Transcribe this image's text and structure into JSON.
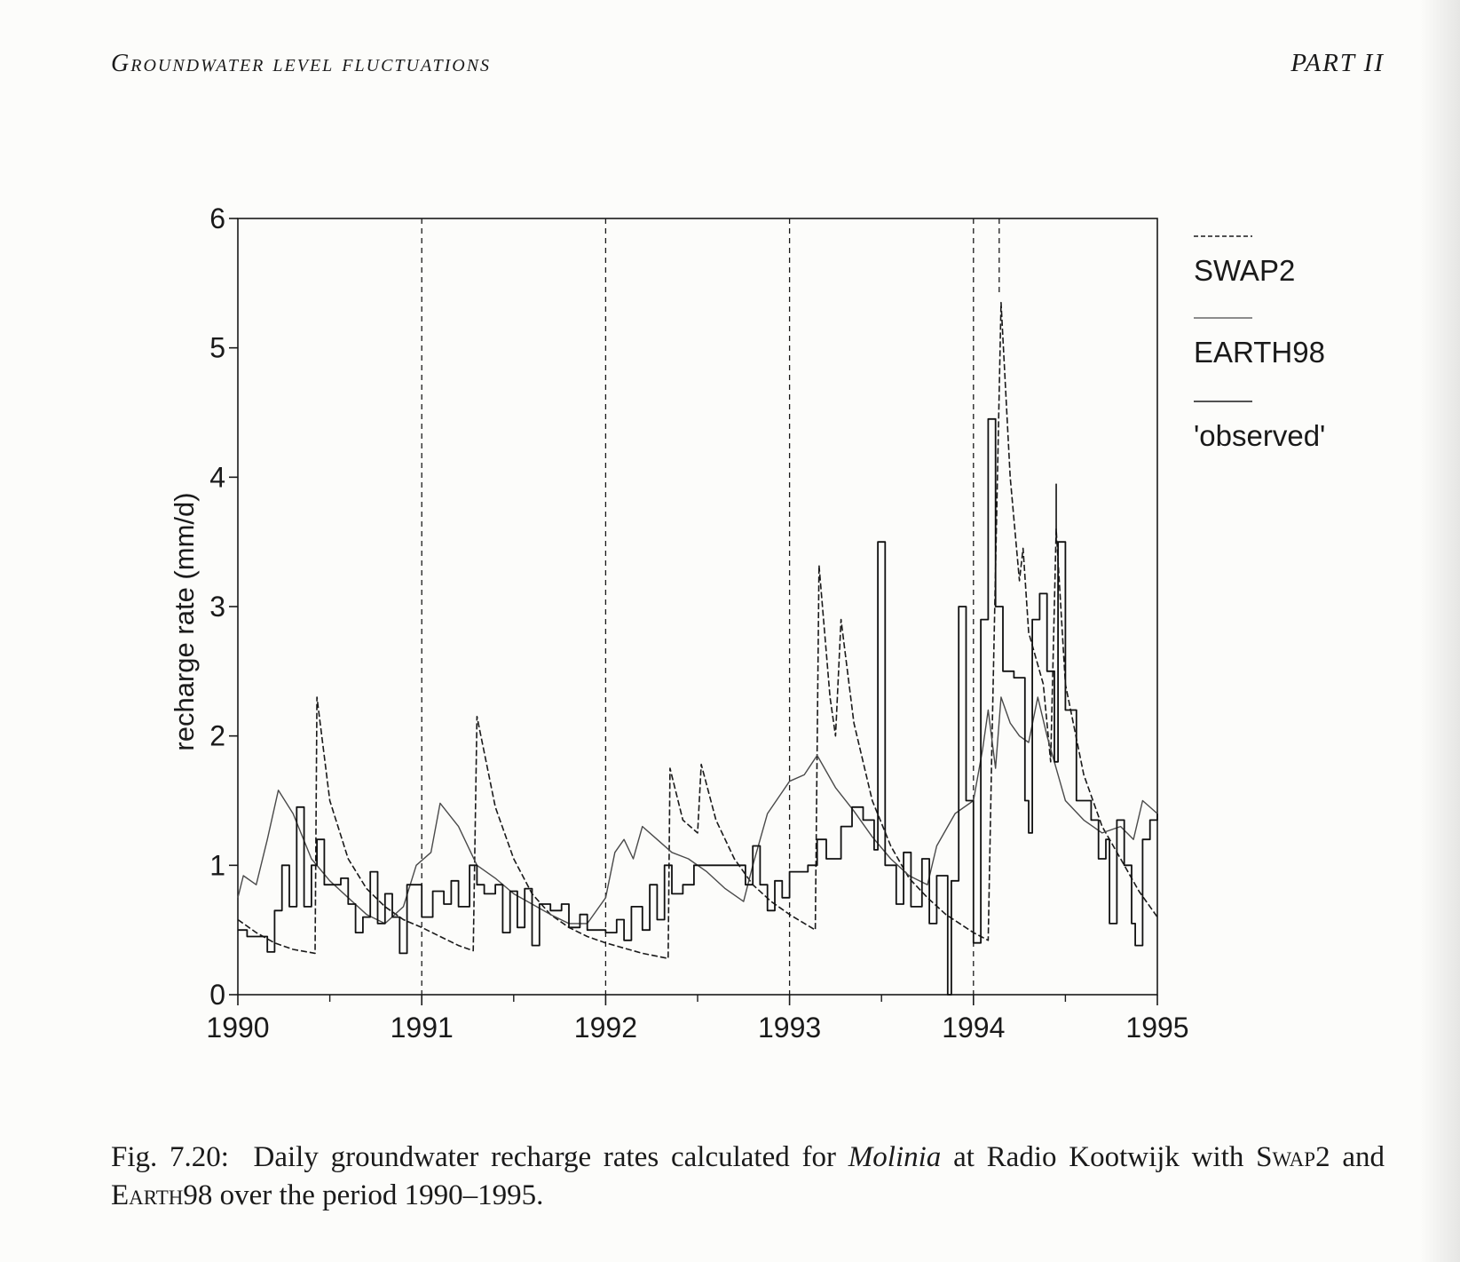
{
  "header": {
    "left": "Groundwater level fluctuations",
    "right": "PART II"
  },
  "caption": {
    "label": "Fig. 7.20:",
    "text_1": "Daily groundwater recharge rates calculated for",
    "species": "Molinia",
    "text_2": "at Radio Kootwijk with",
    "model_1": "Swap2",
    "text_3": "and",
    "model_2": "Earth98",
    "text_4": "over the period 1990–1995."
  },
  "chart_data": {
    "type": "line",
    "title": "",
    "xlabel": "",
    "ylabel": "recharge rate (mm/d)",
    "xlim": [
      1990,
      1995
    ],
    "ylim": [
      0,
      6
    ],
    "x_ticks": [
      "1990",
      "1991",
      "1992",
      "1993",
      "1994",
      "1995"
    ],
    "y_ticks": [
      "0",
      "1",
      "2",
      "3",
      "4",
      "5",
      "6"
    ],
    "grid": false,
    "legend_position": "right",
    "legend": [
      "SWAP2",
      "EARTH98",
      "'observed'"
    ],
    "series": [
      {
        "name": "SWAP2",
        "style": "dashed",
        "points": [
          [
            1990.0,
            0.58
          ],
          [
            1990.1,
            0.48
          ],
          [
            1990.2,
            0.4
          ],
          [
            1990.3,
            0.35
          ],
          [
            1990.42,
            0.32
          ],
          [
            1990.43,
            2.3
          ],
          [
            1990.5,
            1.5
          ],
          [
            1990.6,
            1.05
          ],
          [
            1990.7,
            0.82
          ],
          [
            1990.8,
            0.68
          ],
          [
            1990.9,
            0.58
          ],
          [
            1991.0,
            0.52
          ],
          [
            1991.1,
            0.45
          ],
          [
            1991.2,
            0.38
          ],
          [
            1991.28,
            0.34
          ],
          [
            1991.3,
            2.15
          ],
          [
            1991.4,
            1.45
          ],
          [
            1991.5,
            1.05
          ],
          [
            1991.6,
            0.78
          ],
          [
            1991.7,
            0.62
          ],
          [
            1991.8,
            0.52
          ],
          [
            1991.9,
            0.45
          ],
          [
            1992.0,
            0.4
          ],
          [
            1992.1,
            0.36
          ],
          [
            1992.2,
            0.32
          ],
          [
            1992.34,
            0.28
          ],
          [
            1992.35,
            1.75
          ],
          [
            1992.42,
            1.35
          ],
          [
            1992.5,
            1.25
          ],
          [
            1992.52,
            1.78
          ],
          [
            1992.6,
            1.35
          ],
          [
            1992.7,
            1.05
          ],
          [
            1992.8,
            0.85
          ],
          [
            1992.9,
            0.72
          ],
          [
            1993.0,
            0.62
          ],
          [
            1993.14,
            0.5
          ],
          [
            1993.16,
            3.32
          ],
          [
            1993.22,
            2.3
          ],
          [
            1993.25,
            2.0
          ],
          [
            1993.28,
            2.9
          ],
          [
            1993.35,
            2.1
          ],
          [
            1993.45,
            1.5
          ],
          [
            1993.55,
            1.15
          ],
          [
            1993.65,
            0.9
          ],
          [
            1993.75,
            0.75
          ],
          [
            1993.85,
            0.62
          ],
          [
            1994.0,
            0.48
          ],
          [
            1994.08,
            0.42
          ],
          [
            1994.1,
            1.9
          ],
          [
            1994.15,
            5.35
          ],
          [
            1994.2,
            4.0
          ],
          [
            1994.25,
            3.2
          ],
          [
            1994.27,
            3.45
          ],
          [
            1994.3,
            2.8
          ],
          [
            1994.38,
            2.4
          ],
          [
            1994.42,
            1.8
          ],
          [
            1994.45,
            3.6
          ],
          [
            1994.5,
            2.4
          ],
          [
            1994.6,
            1.7
          ],
          [
            1994.7,
            1.3
          ],
          [
            1994.8,
            1.05
          ],
          [
            1994.9,
            0.8
          ],
          [
            1995.0,
            0.6
          ]
        ]
      },
      {
        "name": "EARTH98",
        "style": "dotted",
        "points": [
          [
            1990.0,
            0.75
          ],
          [
            1990.03,
            0.92
          ],
          [
            1990.1,
            0.85
          ],
          [
            1990.16,
            1.2
          ],
          [
            1990.22,
            1.58
          ],
          [
            1990.3,
            1.4
          ],
          [
            1990.4,
            1.05
          ],
          [
            1990.5,
            0.88
          ],
          [
            1990.6,
            0.75
          ],
          [
            1990.7,
            0.62
          ],
          [
            1990.8,
            0.55
          ],
          [
            1990.9,
            0.68
          ],
          [
            1990.97,
            1.0
          ],
          [
            1991.05,
            1.1
          ],
          [
            1991.1,
            1.48
          ],
          [
            1991.2,
            1.3
          ],
          [
            1991.3,
            1.0
          ],
          [
            1991.4,
            0.9
          ],
          [
            1991.5,
            0.78
          ],
          [
            1991.6,
            0.7
          ],
          [
            1991.7,
            0.62
          ],
          [
            1991.8,
            0.55
          ],
          [
            1991.9,
            0.55
          ],
          [
            1992.0,
            0.75
          ],
          [
            1992.05,
            1.1
          ],
          [
            1992.1,
            1.2
          ],
          [
            1992.15,
            1.05
          ],
          [
            1992.2,
            1.3
          ],
          [
            1992.28,
            1.2
          ],
          [
            1992.36,
            1.1
          ],
          [
            1992.45,
            1.05
          ],
          [
            1992.55,
            0.95
          ],
          [
            1992.65,
            0.82
          ],
          [
            1992.75,
            0.72
          ],
          [
            1992.8,
            1.0
          ],
          [
            1992.88,
            1.4
          ],
          [
            1993.0,
            1.65
          ],
          [
            1993.08,
            1.7
          ],
          [
            1993.15,
            1.85
          ],
          [
            1993.25,
            1.6
          ],
          [
            1993.35,
            1.42
          ],
          [
            1993.45,
            1.22
          ],
          [
            1993.55,
            1.05
          ],
          [
            1993.65,
            0.92
          ],
          [
            1993.75,
            0.85
          ],
          [
            1993.8,
            1.15
          ],
          [
            1993.9,
            1.4
          ],
          [
            1994.0,
            1.5
          ],
          [
            1994.05,
            1.9
          ],
          [
            1994.08,
            2.2
          ],
          [
            1994.12,
            1.75
          ],
          [
            1994.15,
            2.3
          ],
          [
            1994.2,
            2.1
          ],
          [
            1994.25,
            2.0
          ],
          [
            1994.3,
            1.95
          ],
          [
            1994.35,
            2.3
          ],
          [
            1994.4,
            2.0
          ],
          [
            1994.45,
            1.75
          ],
          [
            1994.5,
            1.5
          ],
          [
            1994.6,
            1.35
          ],
          [
            1994.7,
            1.25
          ],
          [
            1994.8,
            1.3
          ],
          [
            1994.87,
            1.2
          ],
          [
            1994.92,
            1.5
          ],
          [
            1995.0,
            1.4
          ]
        ]
      },
      {
        "name": "'observed'",
        "style": "solid-step",
        "points": [
          [
            1990.0,
            0.5
          ],
          [
            1990.05,
            0.45
          ],
          [
            1990.16,
            0.33
          ],
          [
            1990.2,
            0.65
          ],
          [
            1990.24,
            1.0
          ],
          [
            1990.28,
            0.68
          ],
          [
            1990.32,
            1.45
          ],
          [
            1990.36,
            0.68
          ],
          [
            1990.4,
            1.0
          ],
          [
            1990.43,
            1.2
          ],
          [
            1990.47,
            0.85
          ],
          [
            1990.56,
            0.9
          ],
          [
            1990.6,
            0.7
          ],
          [
            1990.64,
            0.48
          ],
          [
            1990.68,
            0.6
          ],
          [
            1990.72,
            0.95
          ],
          [
            1990.76,
            0.55
          ],
          [
            1990.8,
            0.78
          ],
          [
            1990.84,
            0.6
          ],
          [
            1990.88,
            0.32
          ],
          [
            1990.92,
            0.85
          ],
          [
            1991.0,
            0.6
          ],
          [
            1991.06,
            0.8
          ],
          [
            1991.12,
            0.7
          ],
          [
            1991.16,
            0.88
          ],
          [
            1991.2,
            0.68
          ],
          [
            1991.26,
            1.0
          ],
          [
            1991.3,
            0.85
          ],
          [
            1991.34,
            0.78
          ],
          [
            1991.4,
            0.85
          ],
          [
            1991.44,
            0.48
          ],
          [
            1991.48,
            0.8
          ],
          [
            1991.52,
            0.52
          ],
          [
            1991.56,
            0.82
          ],
          [
            1991.6,
            0.38
          ],
          [
            1991.64,
            0.7
          ],
          [
            1991.7,
            0.65
          ],
          [
            1991.76,
            0.7
          ],
          [
            1991.8,
            0.52
          ],
          [
            1991.86,
            0.62
          ],
          [
            1991.9,
            0.5
          ],
          [
            1992.0,
            0.48
          ],
          [
            1992.06,
            0.58
          ],
          [
            1992.1,
            0.42
          ],
          [
            1992.14,
            0.68
          ],
          [
            1992.2,
            0.5
          ],
          [
            1992.24,
            0.85
          ],
          [
            1992.28,
            0.58
          ],
          [
            1992.32,
            1.0
          ],
          [
            1992.36,
            0.78
          ],
          [
            1992.42,
            0.85
          ],
          [
            1992.48,
            1.0
          ],
          [
            1992.56,
            1.0
          ],
          [
            1992.6,
            1.0
          ],
          [
            1992.7,
            1.0
          ],
          [
            1992.76,
            0.85
          ],
          [
            1992.8,
            1.15
          ],
          [
            1992.84,
            0.85
          ],
          [
            1992.88,
            0.65
          ],
          [
            1992.92,
            0.88
          ],
          [
            1992.96,
            0.75
          ],
          [
            1993.0,
            0.95
          ],
          [
            1993.1,
            1.0
          ],
          [
            1993.15,
            1.2
          ],
          [
            1993.2,
            1.05
          ],
          [
            1993.28,
            1.3
          ],
          [
            1993.34,
            1.45
          ],
          [
            1993.4,
            1.35
          ],
          [
            1993.46,
            1.12
          ],
          [
            1993.48,
            3.5
          ],
          [
            1993.52,
            1.0
          ],
          [
            1993.58,
            0.7
          ],
          [
            1993.62,
            1.1
          ],
          [
            1993.66,
            0.68
          ],
          [
            1993.72,
            1.05
          ],
          [
            1993.76,
            0.55
          ],
          [
            1993.8,
            0.92
          ],
          [
            1993.86,
            0.0
          ],
          [
            1993.88,
            0.88
          ],
          [
            1993.92,
            3.0
          ],
          [
            1993.96,
            1.5
          ],
          [
            1994.0,
            0.4
          ],
          [
            1994.04,
            2.9
          ],
          [
            1994.08,
            4.45
          ],
          [
            1994.12,
            3.0
          ],
          [
            1994.16,
            2.5
          ],
          [
            1994.22,
            2.45
          ],
          [
            1994.28,
            1.5
          ],
          [
            1994.3,
            1.25
          ],
          [
            1994.32,
            2.9
          ],
          [
            1994.36,
            3.1
          ],
          [
            1994.4,
            2.5
          ],
          [
            1994.44,
            1.8
          ],
          [
            1994.46,
            3.5
          ],
          [
            1994.5,
            2.2
          ],
          [
            1994.56,
            1.5
          ],
          [
            1994.6,
            1.5
          ],
          [
            1994.64,
            1.35
          ],
          [
            1994.68,
            1.05
          ],
          [
            1994.72,
            1.2
          ],
          [
            1994.74,
            0.55
          ],
          [
            1994.78,
            1.35
          ],
          [
            1994.82,
            1.0
          ],
          [
            1994.86,
            0.55
          ],
          [
            1994.88,
            0.38
          ],
          [
            1994.92,
            1.2
          ],
          [
            1994.96,
            1.35
          ],
          [
            1995.0,
            1.4
          ]
        ]
      }
    ],
    "annotations": [
      {
        "x": 1994.45,
        "y_from": 3.5,
        "y_to": 3.95
      }
    ]
  }
}
